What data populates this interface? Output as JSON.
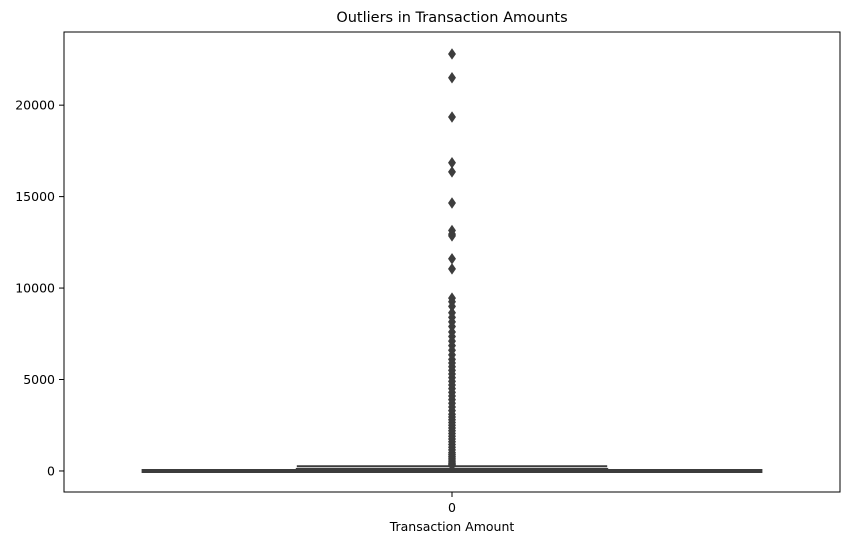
{
  "chart_data": {
    "type": "box",
    "title": "Outliers in Transaction Amounts",
    "xlabel": "Transaction Amount",
    "ylabel": "",
    "categories": [
      "0"
    ],
    "ylim": [
      -1150,
      24000
    ],
    "yticks": [
      0,
      5000,
      10000,
      15000,
      20000
    ],
    "grid": false,
    "box": {
      "whisker_low": 0,
      "q1": 10,
      "median": 40,
      "q3": 110,
      "whisker_high": 260
    },
    "outliers": [
      22800,
      21500,
      19350,
      16850,
      16350,
      14650,
      13150,
      12950,
      12850,
      11600,
      11050,
      9450,
      9250,
      9000,
      8650,
      8400,
      8150,
      7900,
      7600,
      7350,
      7100,
      6850,
      6600,
      6350,
      6100,
      5900,
      5700,
      5500,
      5300,
      5100,
      4900,
      4700,
      4500,
      4300,
      4100,
      3900,
      3700,
      3500,
      3300,
      3100,
      2950,
      2800,
      2650,
      2500,
      2350,
      2200,
      2050,
      1900,
      1750,
      1600,
      1450,
      1300,
      1150,
      1000,
      900,
      800,
      700,
      600,
      500,
      420,
      360,
      300
    ],
    "colors": {
      "box": "#3c3c3c",
      "fill": "#5a5a5a",
      "outlier": "#3d3d3d",
      "axis": "#000000"
    }
  }
}
